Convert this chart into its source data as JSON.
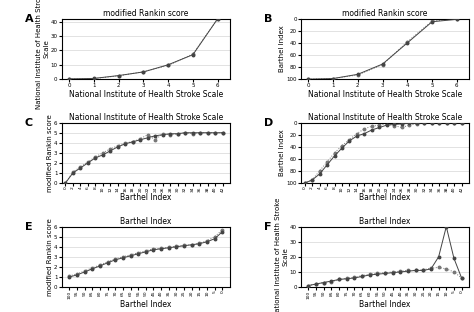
{
  "panel_A": {
    "label": "A",
    "title": "modified Rankin score",
    "xlabel": "National Institute of Health Stroke Scale",
    "ylabel": "National Institute of Health Stroke\nScale",
    "x_solid": [
      0,
      1,
      2,
      3,
      4,
      5,
      6
    ],
    "y_solid": [
      0.2,
      0.5,
      2.5,
      5.0,
      10.0,
      17.0,
      42.0
    ],
    "x_dots": [
      0,
      1,
      2,
      3,
      4,
      5,
      6
    ],
    "y_dots": [
      0.1,
      0.4,
      2.3,
      5.2,
      9.5,
      17.5,
      42.0
    ],
    "ylim": [
      0,
      42
    ],
    "xlim": [
      -0.3,
      6.5
    ],
    "yticks": [
      0,
      10,
      20,
      30,
      40
    ],
    "xticks": [
      0,
      1,
      2,
      3,
      4,
      5,
      6
    ]
  },
  "panel_B": {
    "label": "B",
    "title": "modified Rankin score",
    "xlabel": "National Institute of Health Stroke Scale",
    "ylabel": "Barthel Index",
    "x_solid": [
      0,
      1,
      2,
      3,
      4,
      5,
      6
    ],
    "y_solid": [
      100,
      99,
      92,
      75,
      40,
      5,
      1
    ],
    "x_dots": [
      0,
      1,
      2,
      3,
      4,
      5,
      6
    ],
    "y_dots": [
      100,
      99,
      93,
      76,
      38,
      4,
      0
    ],
    "ylim": [
      0,
      100
    ],
    "ylim_inverted": true,
    "xlim": [
      -0.3,
      6.5
    ],
    "yticks": [
      0,
      20,
      40,
      60,
      80,
      100
    ],
    "xticks": [
      0,
      1,
      2,
      3,
      4,
      5,
      6
    ]
  },
  "panel_C": {
    "label": "C",
    "title": "National Institute of Health Stroke Scale",
    "xlabel": "Barthel Index",
    "ylabel": "modified Rankin score",
    "x_solid": [
      0,
      2,
      4,
      6,
      8,
      10,
      12,
      14,
      16,
      18,
      20,
      22,
      24,
      26,
      28,
      30,
      32,
      34,
      36,
      38,
      40,
      42
    ],
    "y_solid": [
      0,
      1,
      1.5,
      2.0,
      2.5,
      2.8,
      3.2,
      3.6,
      3.9,
      4.1,
      4.3,
      4.5,
      4.7,
      4.8,
      4.9,
      4.9,
      5.0,
      5.0,
      5.0,
      5.0,
      5.0,
      5.0
    ],
    "x_dots": [
      0,
      2,
      4,
      6,
      8,
      10,
      12,
      14,
      16,
      18,
      20,
      22,
      24,
      26,
      28,
      30,
      32,
      34,
      36,
      38,
      40,
      42
    ],
    "y_dots": [
      0,
      1.1,
      1.6,
      2.1,
      2.6,
      3.0,
      3.4,
      3.7,
      4.0,
      4.1,
      4.4,
      4.8,
      4.3,
      4.9,
      4.8,
      4.9,
      5.0,
      4.9,
      5.0,
      5.0,
      5.0,
      5.0
    ],
    "ylim": [
      0,
      6
    ],
    "xlim": [
      -1,
      44
    ],
    "yticks": [
      0,
      1,
      2,
      3,
      4,
      5,
      6
    ],
    "xticks": [
      0,
      2,
      4,
      6,
      8,
      10,
      12,
      14,
      16,
      18,
      20,
      22,
      24,
      26,
      28,
      30,
      32,
      34,
      36,
      38,
      40,
      42
    ]
  },
  "panel_D": {
    "label": "D",
    "title": "National Institute of Health Stroke Scale",
    "xlabel": "Barthel Index",
    "ylabel": "Barthel Index",
    "x_solid": [
      0,
      2,
      4,
      6,
      8,
      10,
      12,
      14,
      16,
      18,
      20,
      22,
      24,
      26,
      28,
      30,
      32,
      34,
      36,
      38,
      40,
      42
    ],
    "y_solid": [
      100,
      95,
      85,
      70,
      55,
      42,
      30,
      22,
      18,
      12,
      8,
      4,
      3,
      2,
      1,
      1,
      0,
      0,
      0,
      0,
      0,
      0
    ],
    "x_dots": [
      0,
      2,
      4,
      6,
      8,
      10,
      12,
      14,
      16,
      18,
      20,
      22,
      24,
      26,
      28,
      30,
      32,
      34,
      36,
      38,
      40,
      42
    ],
    "y_dots": [
      100,
      95,
      80,
      65,
      50,
      38,
      28,
      18,
      10,
      6,
      4,
      2,
      5,
      8,
      4,
      2,
      1,
      0,
      0,
      0,
      0,
      0
    ],
    "ylim": [
      0,
      100
    ],
    "ylim_inverted": true,
    "xlim": [
      -1,
      44
    ],
    "yticks": [
      0,
      20,
      40,
      60,
      80,
      100
    ],
    "xticks": [
      0,
      2,
      4,
      6,
      8,
      10,
      12,
      14,
      16,
      18,
      20,
      22,
      24,
      26,
      28,
      30,
      32,
      34,
      36,
      38,
      40,
      42
    ]
  },
  "panel_E": {
    "label": "E",
    "title": "Barthel Index",
    "xlabel": "Barthel Index",
    "ylabel": "modified Rankin score",
    "x_solid": [
      100,
      95,
      90,
      85,
      80,
      75,
      70,
      65,
      60,
      55,
      50,
      45,
      40,
      35,
      30,
      25,
      20,
      15,
      10,
      5,
      0
    ],
    "y_solid": [
      1.0,
      1.2,
      1.5,
      1.8,
      2.1,
      2.4,
      2.7,
      2.9,
      3.1,
      3.3,
      3.5,
      3.7,
      3.8,
      3.9,
      4.0,
      4.1,
      4.2,
      4.3,
      4.5,
      4.8,
      5.5
    ],
    "x_dots": [
      100,
      95,
      90,
      85,
      80,
      75,
      70,
      65,
      60,
      55,
      50,
      45,
      40,
      35,
      30,
      25,
      20,
      15,
      10,
      5,
      0
    ],
    "y_dots": [
      1.1,
      1.3,
      1.6,
      1.9,
      2.2,
      2.5,
      2.8,
      3.0,
      3.2,
      3.4,
      3.6,
      3.8,
      3.85,
      3.95,
      4.05,
      4.15,
      4.2,
      4.35,
      4.6,
      5.0,
      5.7
    ],
    "ylim": [
      0,
      6
    ],
    "xlim": [
      105,
      -5
    ],
    "yticks": [
      0,
      1,
      2,
      3,
      4,
      5,
      6
    ],
    "xticks": [
      100,
      95,
      90,
      85,
      80,
      75,
      70,
      65,
      60,
      55,
      50,
      45,
      40,
      35,
      30,
      25,
      20,
      15,
      10,
      5,
      0
    ]
  },
  "panel_F": {
    "label": "F",
    "title": "Barthel Index",
    "xlabel": "Barthel Index",
    "ylabel": "National Institute of Health Stroke\nScale",
    "x_solid": [
      100,
      95,
      90,
      85,
      80,
      75,
      70,
      65,
      60,
      55,
      50,
      45,
      40,
      35,
      30,
      25,
      20,
      15,
      10,
      5,
      0
    ],
    "y_solid": [
      1,
      2,
      3,
      4,
      5,
      5.5,
      6,
      7,
      8,
      8.5,
      9,
      9.5,
      10,
      10.5,
      11,
      11,
      12,
      20,
      40,
      19,
      6
    ],
    "x_dots": [
      100,
      95,
      90,
      85,
      80,
      75,
      70,
      65,
      60,
      55,
      50,
      45,
      40,
      35,
      30,
      25,
      20,
      15,
      10,
      5,
      0
    ],
    "y_dots": [
      1,
      2,
      3,
      3.5,
      5,
      5.8,
      6.5,
      7.5,
      8.5,
      9,
      9.5,
      10,
      10.5,
      11,
      11,
      11.5,
      12.5,
      13,
      12,
      10,
      6
    ],
    "ylim": [
      0,
      40
    ],
    "xlim": [
      105,
      -5
    ],
    "yticks": [
      0,
      10,
      20,
      30,
      40
    ],
    "xticks": [
      100,
      95,
      90,
      85,
      80,
      75,
      70,
      65,
      60,
      55,
      50,
      45,
      40,
      35,
      30,
      25,
      20,
      15,
      10,
      5,
      0
    ]
  },
  "line_color_solid": "#444444",
  "line_color_dot": "#777777",
  "marker": "o",
  "markersize": 1.8,
  "linewidth_solid": 0.7,
  "linewidth_dot": 0.7,
  "bg_color": "#ffffff",
  "grid_color": "#cccccc",
  "ylabel_fontsize": 5,
  "xlabel_fontsize": 5.5,
  "title_fontsize": 5.5,
  "tick_fontsize": 4.0,
  "panel_label_fontsize": 8
}
